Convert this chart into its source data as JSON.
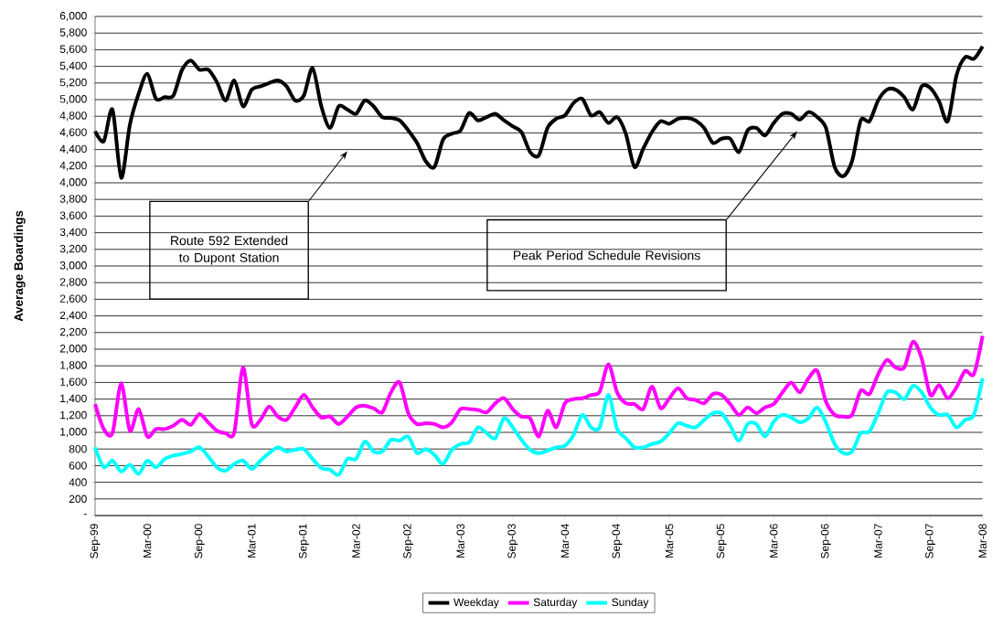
{
  "chart_data": {
    "type": "line",
    "ylabel": "Average Boardings",
    "x": [
      "1999-09",
      "1999-10",
      "1999-11",
      "1999-12",
      "2000-01",
      "2000-02",
      "2000-03",
      "2000-04",
      "2000-05",
      "2000-06",
      "2000-07",
      "2000-08",
      "2000-09",
      "2000-10",
      "2000-11",
      "2000-12",
      "2001-01",
      "2001-02",
      "2001-03",
      "2001-04",
      "2001-05",
      "2001-06",
      "2001-07",
      "2001-08",
      "2001-09",
      "2001-10",
      "2001-11",
      "2001-12",
      "2002-01",
      "2002-02",
      "2002-03",
      "2002-04",
      "2002-05",
      "2002-06",
      "2002-07",
      "2002-08",
      "2002-09",
      "2002-10",
      "2002-11",
      "2002-12",
      "2003-01",
      "2003-02",
      "2003-03",
      "2003-04",
      "2003-05",
      "2003-06",
      "2003-07",
      "2003-08",
      "2003-09",
      "2003-10",
      "2003-11",
      "2003-12",
      "2004-01",
      "2004-02",
      "2004-03",
      "2004-04",
      "2004-05",
      "2004-06",
      "2004-07",
      "2004-08",
      "2004-09",
      "2004-10",
      "2004-11",
      "2004-12",
      "2005-01",
      "2005-02",
      "2005-03",
      "2005-04",
      "2005-05",
      "2005-06",
      "2005-07",
      "2005-08",
      "2005-09",
      "2005-10",
      "2005-11",
      "2005-12",
      "2006-01",
      "2006-02",
      "2006-03",
      "2006-04",
      "2006-05",
      "2006-06",
      "2006-07",
      "2006-08",
      "2006-09",
      "2006-10",
      "2006-11",
      "2006-12",
      "2007-01",
      "2007-02",
      "2007-03",
      "2007-04",
      "2007-05",
      "2007-06",
      "2007-07",
      "2007-08",
      "2007-09",
      "2007-10",
      "2007-11",
      "2007-12",
      "2008-01",
      "2008-02",
      "2008-03"
    ],
    "series": [
      {
        "name": "Weekday",
        "color": "#000000",
        "values": [
          4620,
          4500,
          4880,
          4060,
          4700,
          5070,
          5310,
          5010,
          5030,
          5050,
          5360,
          5470,
          5360,
          5360,
          5210,
          4990,
          5230,
          4920,
          5120,
          5160,
          5200,
          5230,
          5160,
          4990,
          5050,
          5380,
          4920,
          4660,
          4920,
          4880,
          4830,
          4990,
          4920,
          4790,
          4780,
          4750,
          4630,
          4480,
          4260,
          4190,
          4520,
          4590,
          4630,
          4840,
          4750,
          4790,
          4830,
          4750,
          4680,
          4610,
          4370,
          4330,
          4660,
          4770,
          4810,
          4960,
          5010,
          4810,
          4850,
          4720,
          4790,
          4590,
          4190,
          4410,
          4610,
          4740,
          4710,
          4770,
          4780,
          4750,
          4660,
          4480,
          4530,
          4530,
          4370,
          4630,
          4660,
          4570,
          4720,
          4830,
          4830,
          4760,
          4850,
          4790,
          4660,
          4190,
          4080,
          4260,
          4750,
          4740,
          4990,
          5120,
          5120,
          5030,
          4880,
          5160,
          5140,
          4980,
          4740,
          5290,
          5510,
          5490,
          5640
        ]
      },
      {
        "name": "Saturday",
        "color": "#ff00ff",
        "values": [
          1340,
          1040,
          990,
          1590,
          1020,
          1280,
          950,
          1040,
          1040,
          1080,
          1150,
          1090,
          1220,
          1120,
          1020,
          990,
          1000,
          1780,
          1100,
          1150,
          1310,
          1190,
          1150,
          1300,
          1450,
          1300,
          1180,
          1190,
          1100,
          1190,
          1300,
          1320,
          1290,
          1240,
          1480,
          1600,
          1230,
          1100,
          1110,
          1100,
          1060,
          1120,
          1280,
          1280,
          1270,
          1240,
          1350,
          1410,
          1280,
          1190,
          1170,
          950,
          1260,
          1060,
          1350,
          1400,
          1410,
          1450,
          1490,
          1820,
          1480,
          1350,
          1340,
          1280,
          1550,
          1290,
          1410,
          1530,
          1410,
          1390,
          1350,
          1460,
          1450,
          1340,
          1210,
          1300,
          1230,
          1300,
          1340,
          1480,
          1600,
          1480,
          1650,
          1740,
          1370,
          1210,
          1190,
          1210,
          1500,
          1460,
          1700,
          1870,
          1780,
          1780,
          2090,
          1890,
          1450,
          1570,
          1410,
          1540,
          1740,
          1700,
          2160
        ]
      },
      {
        "name": "Sunday",
        "color": "#00ffff",
        "values": [
          820,
          580,
          660,
          530,
          610,
          500,
          660,
          580,
          680,
          720,
          740,
          770,
          820,
          710,
          580,
          540,
          620,
          660,
          560,
          660,
          750,
          820,
          770,
          790,
          800,
          680,
          570,
          550,
          490,
          680,
          680,
          890,
          770,
          770,
          910,
          900,
          950,
          750,
          800,
          730,
          620,
          790,
          860,
          880,
          1060,
          990,
          930,
          1170,
          1060,
          910,
          790,
          750,
          780,
          820,
          840,
          970,
          1210,
          1060,
          1060,
          1450,
          1040,
          930,
          820,
          820,
          860,
          890,
          990,
          1110,
          1080,
          1060,
          1150,
          1230,
          1230,
          1080,
          900,
          1100,
          1100,
          950,
          1130,
          1210,
          1180,
          1120,
          1170,
          1300,
          1120,
          860,
          750,
          770,
          990,
          1010,
          1230,
          1480,
          1480,
          1400,
          1560,
          1480,
          1300,
          1210,
          1210,
          1060,
          1150,
          1210,
          1650
        ]
      }
    ],
    "xlim": [
      "1999-09",
      "2008-03"
    ],
    "xticks": [
      {
        "value": "1999-09",
        "label": "Sep-99"
      },
      {
        "value": "2000-03",
        "label": "Mar-00"
      },
      {
        "value": "2000-09",
        "label": "Sep-00"
      },
      {
        "value": "2001-03",
        "label": "Mar-01"
      },
      {
        "value": "2001-09",
        "label": "Sep-01"
      },
      {
        "value": "2002-03",
        "label": "Mar-02"
      },
      {
        "value": "2002-09",
        "label": "Sep-02"
      },
      {
        "value": "2003-03",
        "label": "Mar-03"
      },
      {
        "value": "2003-09",
        "label": "Sep-03"
      },
      {
        "value": "2004-03",
        "label": "Mar-04"
      },
      {
        "value": "2004-09",
        "label": "Sep-04"
      },
      {
        "value": "2005-03",
        "label": "Mar-05"
      },
      {
        "value": "2005-09",
        "label": "Sep-05"
      },
      {
        "value": "2006-03",
        "label": "Mar-06"
      },
      {
        "value": "2006-09",
        "label": "Sep-06"
      },
      {
        "value": "2007-03",
        "label": "Mar-07"
      },
      {
        "value": "2007-09",
        "label": "Sep-07"
      },
      {
        "value": "2008-03",
        "label": "Mar-08"
      }
    ],
    "ylim": [
      0,
      6000
    ],
    "yticks": [
      {
        "value": 0,
        "label": "-"
      },
      200,
      400,
      600,
      800,
      {
        "value": 1000,
        "label": "1,000"
      },
      {
        "value": 1200,
        "label": "1,200"
      },
      {
        "value": 1400,
        "label": "1,400"
      },
      {
        "value": 1600,
        "label": "1,600"
      },
      {
        "value": 1800,
        "label": "1,800"
      },
      {
        "value": 2000,
        "label": "2,000"
      },
      {
        "value": 2200,
        "label": "2,200"
      },
      {
        "value": 2400,
        "label": "2,400"
      },
      {
        "value": 2600,
        "label": "2,600"
      },
      {
        "value": 2800,
        "label": "2,800"
      },
      {
        "value": 3000,
        "label": "3,000"
      },
      {
        "value": 3200,
        "label": "3,200"
      },
      {
        "value": 3400,
        "label": "3,400"
      },
      {
        "value": 3600,
        "label": "3,600"
      },
      {
        "value": 3800,
        "label": "3,800"
      },
      {
        "value": 4000,
        "label": "4,000"
      },
      {
        "value": 4200,
        "label": "4,200"
      },
      {
        "value": 4400,
        "label": "4,400"
      },
      {
        "value": 4600,
        "label": "4,600"
      },
      {
        "value": 4800,
        "label": "4,800"
      },
      {
        "value": 5000,
        "label": "5,000"
      },
      {
        "value": 5200,
        "label": "5,200"
      },
      {
        "value": 5400,
        "label": "5,400"
      },
      {
        "value": 5600,
        "label": "5,600"
      },
      {
        "value": 5800,
        "label": "5,800"
      },
      {
        "value": 6000,
        "label": "6,000"
      }
    ],
    "annotations": [
      "Route 592 Extended to Dupont Station",
      "Peak Period Schedule Revisions"
    ],
    "grid": "y",
    "legend": "bottom",
    "marker": "none",
    "line_style": "solid"
  }
}
